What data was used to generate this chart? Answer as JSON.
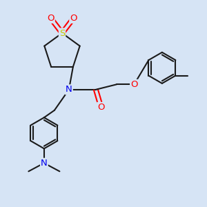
{
  "background_color": "#d6e4f5",
  "line_color": "#1a1a1a",
  "bond_width": 1.5,
  "atom_colors": {
    "S": "#c8c800",
    "O": "#ff0000",
    "N": "#0000ee",
    "C": "#1a1a1a"
  },
  "font_size": 8.5,
  "figsize": [
    3.0,
    3.0
  ],
  "dpi": 100
}
